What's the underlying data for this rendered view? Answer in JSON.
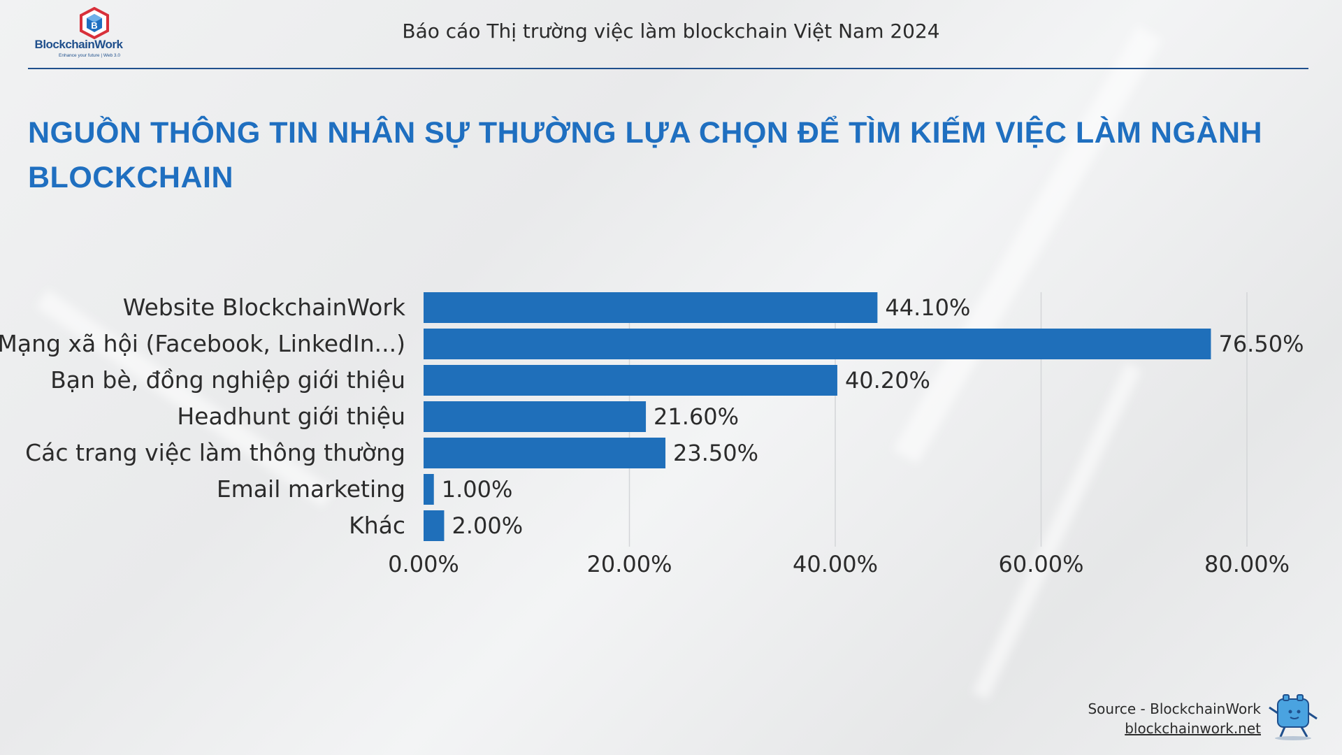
{
  "header": {
    "logo_text": "BlockchainWork",
    "logo_tagline": "Enhance your future | Web 3.0",
    "report_title": "Báo cáo Thị trường việc làm blockchain Việt Nam 2024"
  },
  "title_line1": "NGUỒN THÔNG TIN NHÂN SỰ THƯỜNG LỰA CHỌN ĐỂ TÌM KIẾM VIỆC LÀM NGÀNH",
  "title_line2": "BLOCKCHAIN",
  "chart_data": {
    "type": "bar",
    "orientation": "horizontal",
    "categories": [
      "Website BlockchainWork",
      "Mạng xã hội (Facebook, LinkedIn...)",
      "Bạn bè, đồng nghiệp giới thiệu",
      "Headhunt giới thiệu",
      "Các trang việc làm thông thường",
      "Email marketing",
      "Khác"
    ],
    "values": [
      44.1,
      76.5,
      40.2,
      21.6,
      23.5,
      1.0,
      2.0
    ],
    "value_labels": [
      "44.10%",
      "76.50%",
      "40.20%",
      "21.60%",
      "23.50%",
      "1.00%",
      "2.00%"
    ],
    "xlim": [
      0,
      80
    ],
    "xticks": [
      0,
      20,
      40,
      60,
      80
    ],
    "xtick_labels": [
      "0.00%",
      "20.00%",
      "40.00%",
      "60.00%",
      "80.00%"
    ],
    "bar_color": "#1f6fba",
    "grid": true
  },
  "footer": {
    "source_label": "Source - BlockchainWork",
    "source_link": "blockchainwork.net"
  },
  "colors": {
    "brand_blue": "#1f4f8c",
    "title_blue": "#1f6fc0",
    "logo_red": "#d8303a"
  }
}
